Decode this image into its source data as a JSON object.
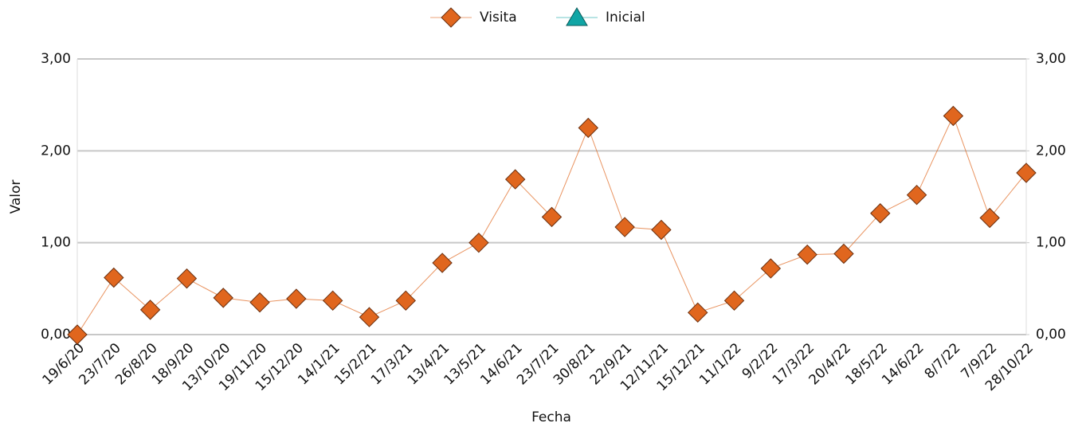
{
  "chart_data": {
    "type": "line",
    "x_label": "Fecha",
    "y_label": "Valor",
    "categories": [
      "19/6/20",
      "23/7/20",
      "26/8/20",
      "18/9/20",
      "13/10/20",
      "19/11/20",
      "15/12/20",
      "14/1/21",
      "15/2/21",
      "17/3/21",
      "13/4/21",
      "13/5/21",
      "14/6/21",
      "23/7/21",
      "30/8/21",
      "22/9/21",
      "12/11/21",
      "15/12/21",
      "11/1/22",
      "9/2/22",
      "17/3/22",
      "20/4/22",
      "18/5/22",
      "14/6/22",
      "8/7/22",
      "7/9/22",
      "28/10/22"
    ],
    "series": [
      {
        "name": "Visita",
        "color": "#e0661e",
        "marker": "diamond",
        "values": [
          0,
          0.62,
          0.27,
          0.61,
          0.4,
          0.35,
          0.39,
          0.37,
          0.19,
          0.37,
          0.78,
          1.0,
          1.69,
          1.28,
          2.25,
          1.17,
          1.14,
          0.24,
          0.37,
          0.72,
          0.87,
          0.88,
          1.32,
          1.52,
          2.38,
          1.27,
          1.76
        ]
      },
      {
        "name": "Inicial",
        "color": "#10a5a5",
        "marker": "triangle",
        "values": [
          null,
          null,
          null,
          null,
          null,
          null,
          null,
          null,
          null,
          null,
          null,
          null,
          null,
          null,
          null,
          null,
          null,
          null,
          null,
          null,
          null,
          null,
          null,
          null,
          null,
          null,
          null
        ]
      }
    ],
    "ylim": [
      0,
      3
    ],
    "yticks": [
      {
        "value": 0,
        "label": "0,00"
      },
      {
        "value": 1,
        "label": "1,00"
      },
      {
        "value": 2,
        "label": "2,00"
      },
      {
        "value": 3,
        "label": "3,00"
      }
    ],
    "y2lim": [
      0,
      3
    ],
    "y2ticks": [
      {
        "value": 0,
        "label": "0,00"
      },
      {
        "value": 1,
        "label": "1,00"
      },
      {
        "value": 2,
        "label": "2,00"
      },
      {
        "value": 3,
        "label": "3,00"
      }
    ],
    "grid": true,
    "legend": "top"
  }
}
